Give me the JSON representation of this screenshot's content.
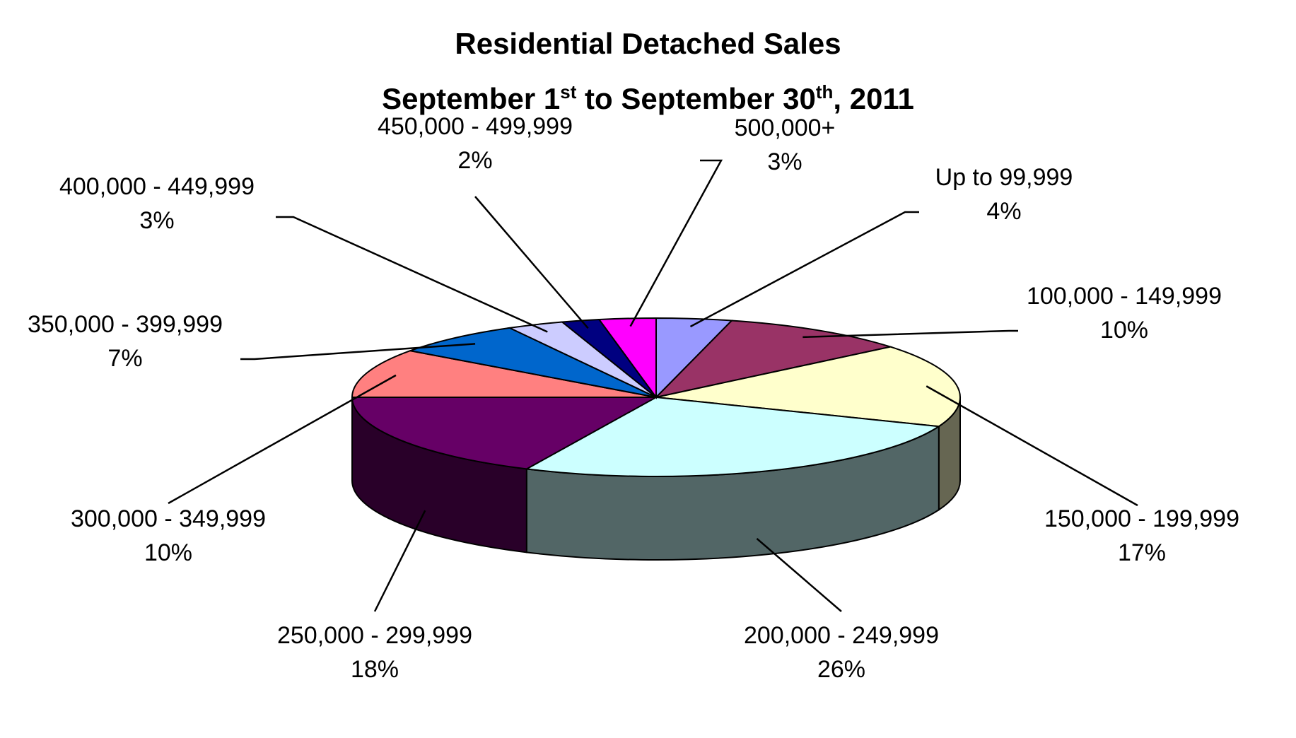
{
  "title": {
    "line1": "Residential Detached Sales",
    "line2": {
      "part1": "September 1",
      "sup1": "st",
      "part2": " to September 30",
      "sup2": "th",
      "part3": ", 2011"
    }
  },
  "chart_data": {
    "type": "pie",
    "title": "Residential Detached Sales September 1st to September 30th, 2011",
    "style": "3d-exploded-none",
    "slices": [
      {
        "label": "Up to 99,999",
        "value": 4,
        "value_label": "4%",
        "color": "#9999FF"
      },
      {
        "label": "100,000 - 149,999",
        "value": 10,
        "value_label": "10%",
        "color": "#993366"
      },
      {
        "label": "150,000 - 199,999",
        "value": 17,
        "value_label": "17%",
        "color": "#FFFFCC"
      },
      {
        "label": "200,000 - 249,999",
        "value": 26,
        "value_label": "26%",
        "color": "#CCFFFF"
      },
      {
        "label": "250,000 - 299,999",
        "value": 18,
        "value_label": "18%",
        "color": "#660066"
      },
      {
        "label": "300,000 - 349,999",
        "value": 10,
        "value_label": "10%",
        "color": "#FF8080"
      },
      {
        "label": "350,000 - 399,999",
        "value": 7,
        "value_label": "7%",
        "color": "#0066CC"
      },
      {
        "label": "400,000 - 449,999",
        "value": 3,
        "value_label": "3%",
        "color": "#CCCCFF"
      },
      {
        "label": "450,000 - 499,999",
        "value": 2,
        "value_label": "2%",
        "color": "#000080"
      },
      {
        "label": "500,000+",
        "value": 3,
        "value_label": "3%",
        "color": "#FF00FF"
      }
    ]
  }
}
